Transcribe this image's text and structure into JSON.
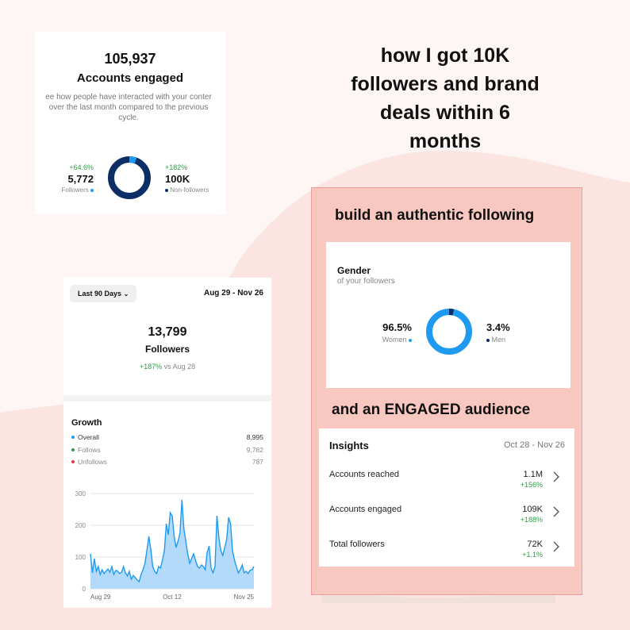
{
  "colors": {
    "background": "#fdf6f4",
    "blob": "#fbe4e1",
    "accent_blue": "#1e9bf0",
    "navy": "#0c2d66",
    "green": "#2e9e44",
    "red": "#e23b3b",
    "pink_panel": "#f8c8c0"
  },
  "headline": {
    "lines": [
      "how I got 10K",
      "followers and brand",
      "deals within 6",
      "months"
    ]
  },
  "accounts_card": {
    "value": "105,937",
    "label": "Accounts engaged",
    "description_lines": [
      "ee how people have interacted with your conter",
      "over the last month compared to the previous",
      "cycle."
    ],
    "followers": {
      "change": "+64.6%",
      "value": "5,772",
      "label": "Followers"
    },
    "non_followers": {
      "change": "+182%",
      "value": "100K",
      "label": "Non-followers"
    },
    "donut_icon": "donut-chart-icon"
  },
  "followers_card": {
    "period_button": "Last 90 Days",
    "date_range": "Aug 29 - Nov 26",
    "value": "13,799",
    "label": "Followers",
    "change": "+187%",
    "change_suffix": " vs Aug 28",
    "growth_title": "Growth",
    "legend": [
      {
        "name": "Overall",
        "value": "8,995",
        "color": "#1e9bf0"
      },
      {
        "name": "Follows",
        "value": "9,782",
        "color": "#2e9e44"
      },
      {
        "name": "Unfollows",
        "value": "787",
        "color": "#e23b3b"
      }
    ]
  },
  "chart_data": {
    "type": "area",
    "ylim": [
      0,
      300
    ],
    "y_ticks": [
      "300",
      "200",
      "100",
      "0"
    ],
    "x_tick_labels": [
      "Aug 29",
      "Oct 12",
      "Nov 25"
    ],
    "series": [
      {
        "values": [
          110,
          50,
          95,
          55,
          70,
          45,
          60,
          48,
          55,
          62,
          52,
          70,
          45,
          58,
          55,
          48,
          52,
          70,
          50,
          40,
          55,
          30,
          42,
          35,
          28,
          22,
          45,
          60,
          80,
          120,
          165,
          125,
          70,
          55,
          48,
          70,
          65,
          90,
          120,
          205,
          170,
          240,
          230,
          165,
          130,
          150,
          175,
          280,
          190,
          150,
          110,
          80,
          95,
          110,
          90,
          70,
          65,
          75,
          70,
          60,
          115,
          135,
          65,
          50,
          70,
          230,
          160,
          120,
          105,
          130,
          155,
          225,
          205,
          120,
          90,
          70,
          50,
          60,
          75,
          50,
          55,
          48,
          58,
          60,
          70
        ]
      }
    ]
  },
  "pink_panel": {
    "heading1": "build an authentic following",
    "heading2": "and an ENGAGED audience"
  },
  "gender_card": {
    "title": "Gender",
    "subtitle": "of your followers",
    "women": {
      "value": "96.5%",
      "label": "Women",
      "fraction": 0.965
    },
    "men": {
      "value": "3.4%",
      "label": "Men",
      "fraction": 0.034
    }
  },
  "insights_card": {
    "title": "Insights",
    "date_range": "Oct 28 - Nov 26",
    "rows": [
      {
        "label": "Accounts reached",
        "value": "1.1M",
        "change": "+156%"
      },
      {
        "label": "Accounts engaged",
        "value": "109K",
        "change": "+188%"
      },
      {
        "label": "Total followers",
        "value": "72K",
        "change": "+1.1%"
      }
    ]
  }
}
